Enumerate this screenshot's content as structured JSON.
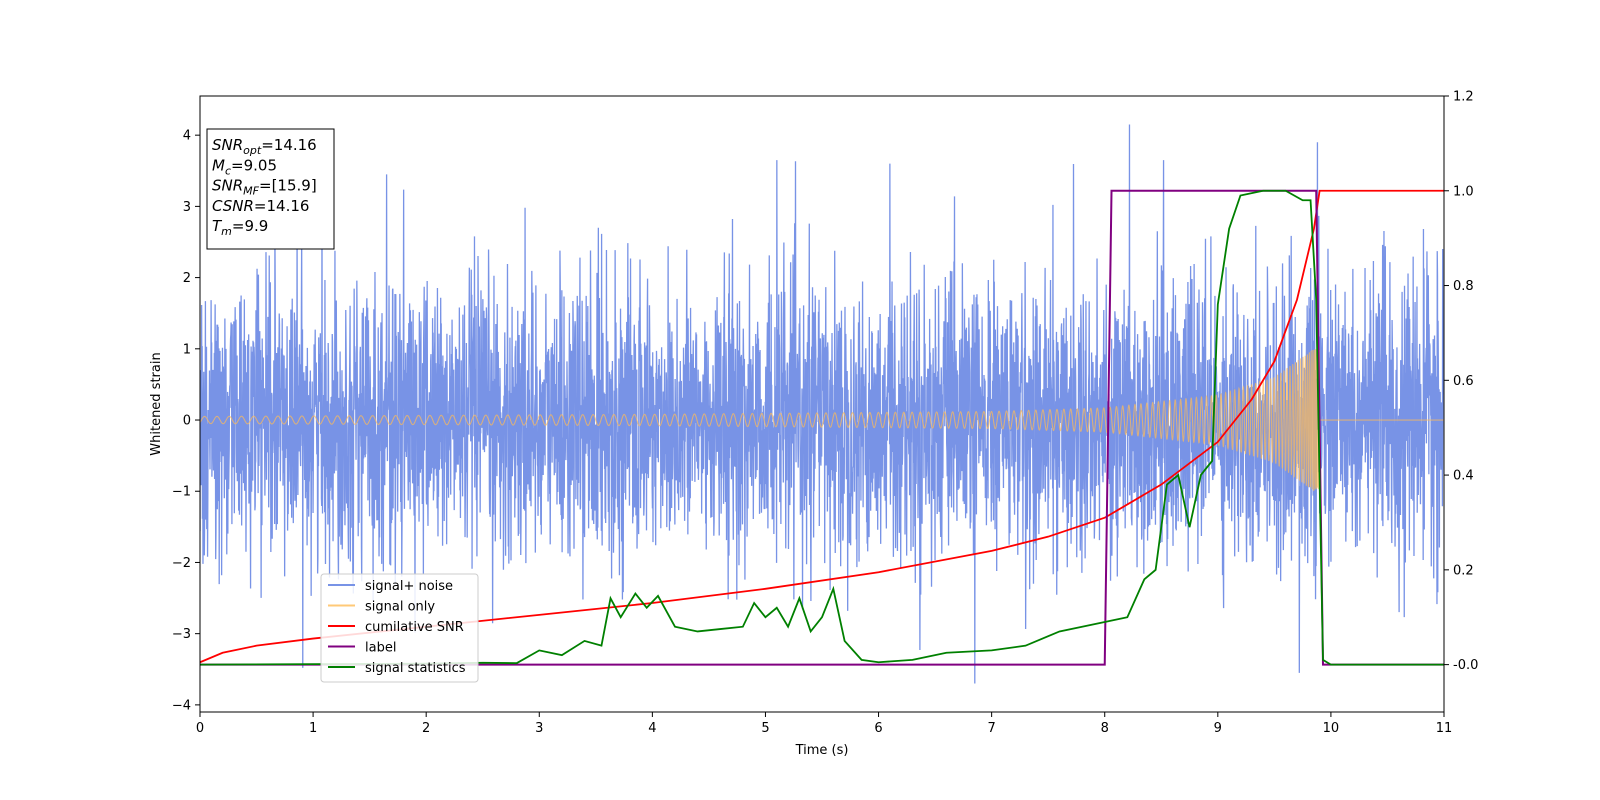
{
  "chart_data": {
    "type": "line",
    "xlabel": "Time (s)",
    "ylabel": "Whitened strain",
    "xlim": [
      0,
      11
    ],
    "ylim": [
      -4.1,
      4.55
    ],
    "y2lim": [
      -0.1,
      1.2
    ],
    "xticks": [
      0,
      1,
      2,
      3,
      4,
      5,
      6,
      7,
      8,
      9,
      10,
      11
    ],
    "yticks": [
      -4,
      -3,
      -2,
      -1,
      0,
      1,
      2,
      3,
      4
    ],
    "y2ticks": [
      "-0.0",
      "0.2",
      "0.4",
      "0.6",
      "0.8",
      "1.0",
      "1.2"
    ],
    "y2tick_values": [
      0,
      0.2,
      0.4,
      0.6,
      0.8,
      1.0,
      1.2
    ],
    "grid": false,
    "legend_position": "lower-left",
    "annotation": [
      {
        "base": "SNR",
        "sub": "opt",
        "rest": "=14.16"
      },
      {
        "base": "M",
        "sub": "c",
        "rest": "=9.05"
      },
      {
        "base": "SNR",
        "sub": "MF",
        "rest": "=[15.9]"
      },
      {
        "base": "CSNR",
        "sub": "",
        "rest": "=14.16"
      },
      {
        "base": "T",
        "sub": "m",
        "rest": "=9.9"
      }
    ],
    "series": [
      {
        "name": "signal+ noise",
        "axis": "left",
        "color": "#7893e6",
        "description": "whitened noise with std ~1, envelope roughly ±2.5 with spikes up to ±4",
        "noise_std": 0.95,
        "spikes": [
          [
            8.22,
            4.15
          ],
          [
            9.88,
            3.9
          ],
          [
            6.85,
            -3.7
          ],
          [
            9.72,
            -3.55
          ],
          [
            1.65,
            3.45
          ],
          [
            5.1,
            3.65
          ],
          [
            8.52,
            3.65
          ],
          [
            6.1,
            3.6
          ]
        ]
      },
      {
        "name": "signal only",
        "axis": "left",
        "color": "#ffbb55",
        "description": "chirp waveform, amplitude growing until merger at 9.9 s",
        "t_merger": 9.9,
        "amplitude_points": [
          [
            0,
            0.05
          ],
          [
            4,
            0.08
          ],
          [
            7,
            0.12
          ],
          [
            8,
            0.17
          ],
          [
            9,
            0.35
          ],
          [
            9.5,
            0.6
          ],
          [
            9.85,
            1.0
          ],
          [
            9.9,
            1.0
          ]
        ]
      },
      {
        "name": "cumilative SNR",
        "axis": "right",
        "color": "#ff0000",
        "points": [
          [
            0,
            0.005
          ],
          [
            0.2,
            0.025
          ],
          [
            0.5,
            0.04
          ],
          [
            1,
            0.055
          ],
          [
            2,
            0.08
          ],
          [
            3,
            0.105
          ],
          [
            4,
            0.13
          ],
          [
            5,
            0.16
          ],
          [
            6,
            0.195
          ],
          [
            7,
            0.24
          ],
          [
            7.5,
            0.27
          ],
          [
            8,
            0.31
          ],
          [
            8.5,
            0.38
          ],
          [
            9,
            0.47
          ],
          [
            9.3,
            0.56
          ],
          [
            9.5,
            0.64
          ],
          [
            9.7,
            0.77
          ],
          [
            9.85,
            0.92
          ],
          [
            9.9,
            1.0
          ],
          [
            11,
            1.0
          ]
        ]
      },
      {
        "name": "label",
        "axis": "right",
        "color": "#800080",
        "points": [
          [
            0,
            0
          ],
          [
            8.0,
            0
          ],
          [
            8.06,
            1.0
          ],
          [
            9.87,
            1.0
          ],
          [
            9.93,
            0
          ],
          [
            11,
            0
          ]
        ]
      },
      {
        "name": "signal statistics",
        "axis": "right",
        "color": "#008000",
        "points": [
          [
            0,
            0
          ],
          [
            1,
            0.001
          ],
          [
            2,
            0.002
          ],
          [
            2.5,
            0.004
          ],
          [
            2.8,
            0.003
          ],
          [
            3.0,
            0.03
          ],
          [
            3.2,
            0.02
          ],
          [
            3.4,
            0.05
          ],
          [
            3.55,
            0.04
          ],
          [
            3.63,
            0.14
          ],
          [
            3.72,
            0.1
          ],
          [
            3.85,
            0.15
          ],
          [
            3.95,
            0.12
          ],
          [
            4.05,
            0.145
          ],
          [
            4.2,
            0.08
          ],
          [
            4.4,
            0.07
          ],
          [
            4.6,
            0.075
          ],
          [
            4.8,
            0.08
          ],
          [
            4.9,
            0.13
          ],
          [
            5.0,
            0.1
          ],
          [
            5.1,
            0.12
          ],
          [
            5.2,
            0.08
          ],
          [
            5.3,
            0.14
          ],
          [
            5.4,
            0.07
          ],
          [
            5.5,
            0.1
          ],
          [
            5.6,
            0.16
          ],
          [
            5.7,
            0.05
          ],
          [
            5.85,
            0.01
          ],
          [
            6.0,
            0.005
          ],
          [
            6.3,
            0.01
          ],
          [
            6.6,
            0.025
          ],
          [
            7.0,
            0.03
          ],
          [
            7.3,
            0.04
          ],
          [
            7.6,
            0.07
          ],
          [
            7.8,
            0.08
          ],
          [
            8.0,
            0.09
          ],
          [
            8.2,
            0.1
          ],
          [
            8.35,
            0.18
          ],
          [
            8.45,
            0.2
          ],
          [
            8.55,
            0.38
          ],
          [
            8.65,
            0.4
          ],
          [
            8.75,
            0.29
          ],
          [
            8.85,
            0.4
          ],
          [
            8.95,
            0.43
          ],
          [
            9.0,
            0.76
          ],
          [
            9.1,
            0.92
          ],
          [
            9.2,
            0.99
          ],
          [
            9.4,
            1.0
          ],
          [
            9.6,
            1.0
          ],
          [
            9.75,
            0.98
          ],
          [
            9.82,
            0.98
          ],
          [
            9.87,
            0.77
          ],
          [
            9.93,
            0.01
          ],
          [
            10.0,
            0
          ],
          [
            11,
            0
          ]
        ]
      }
    ]
  }
}
